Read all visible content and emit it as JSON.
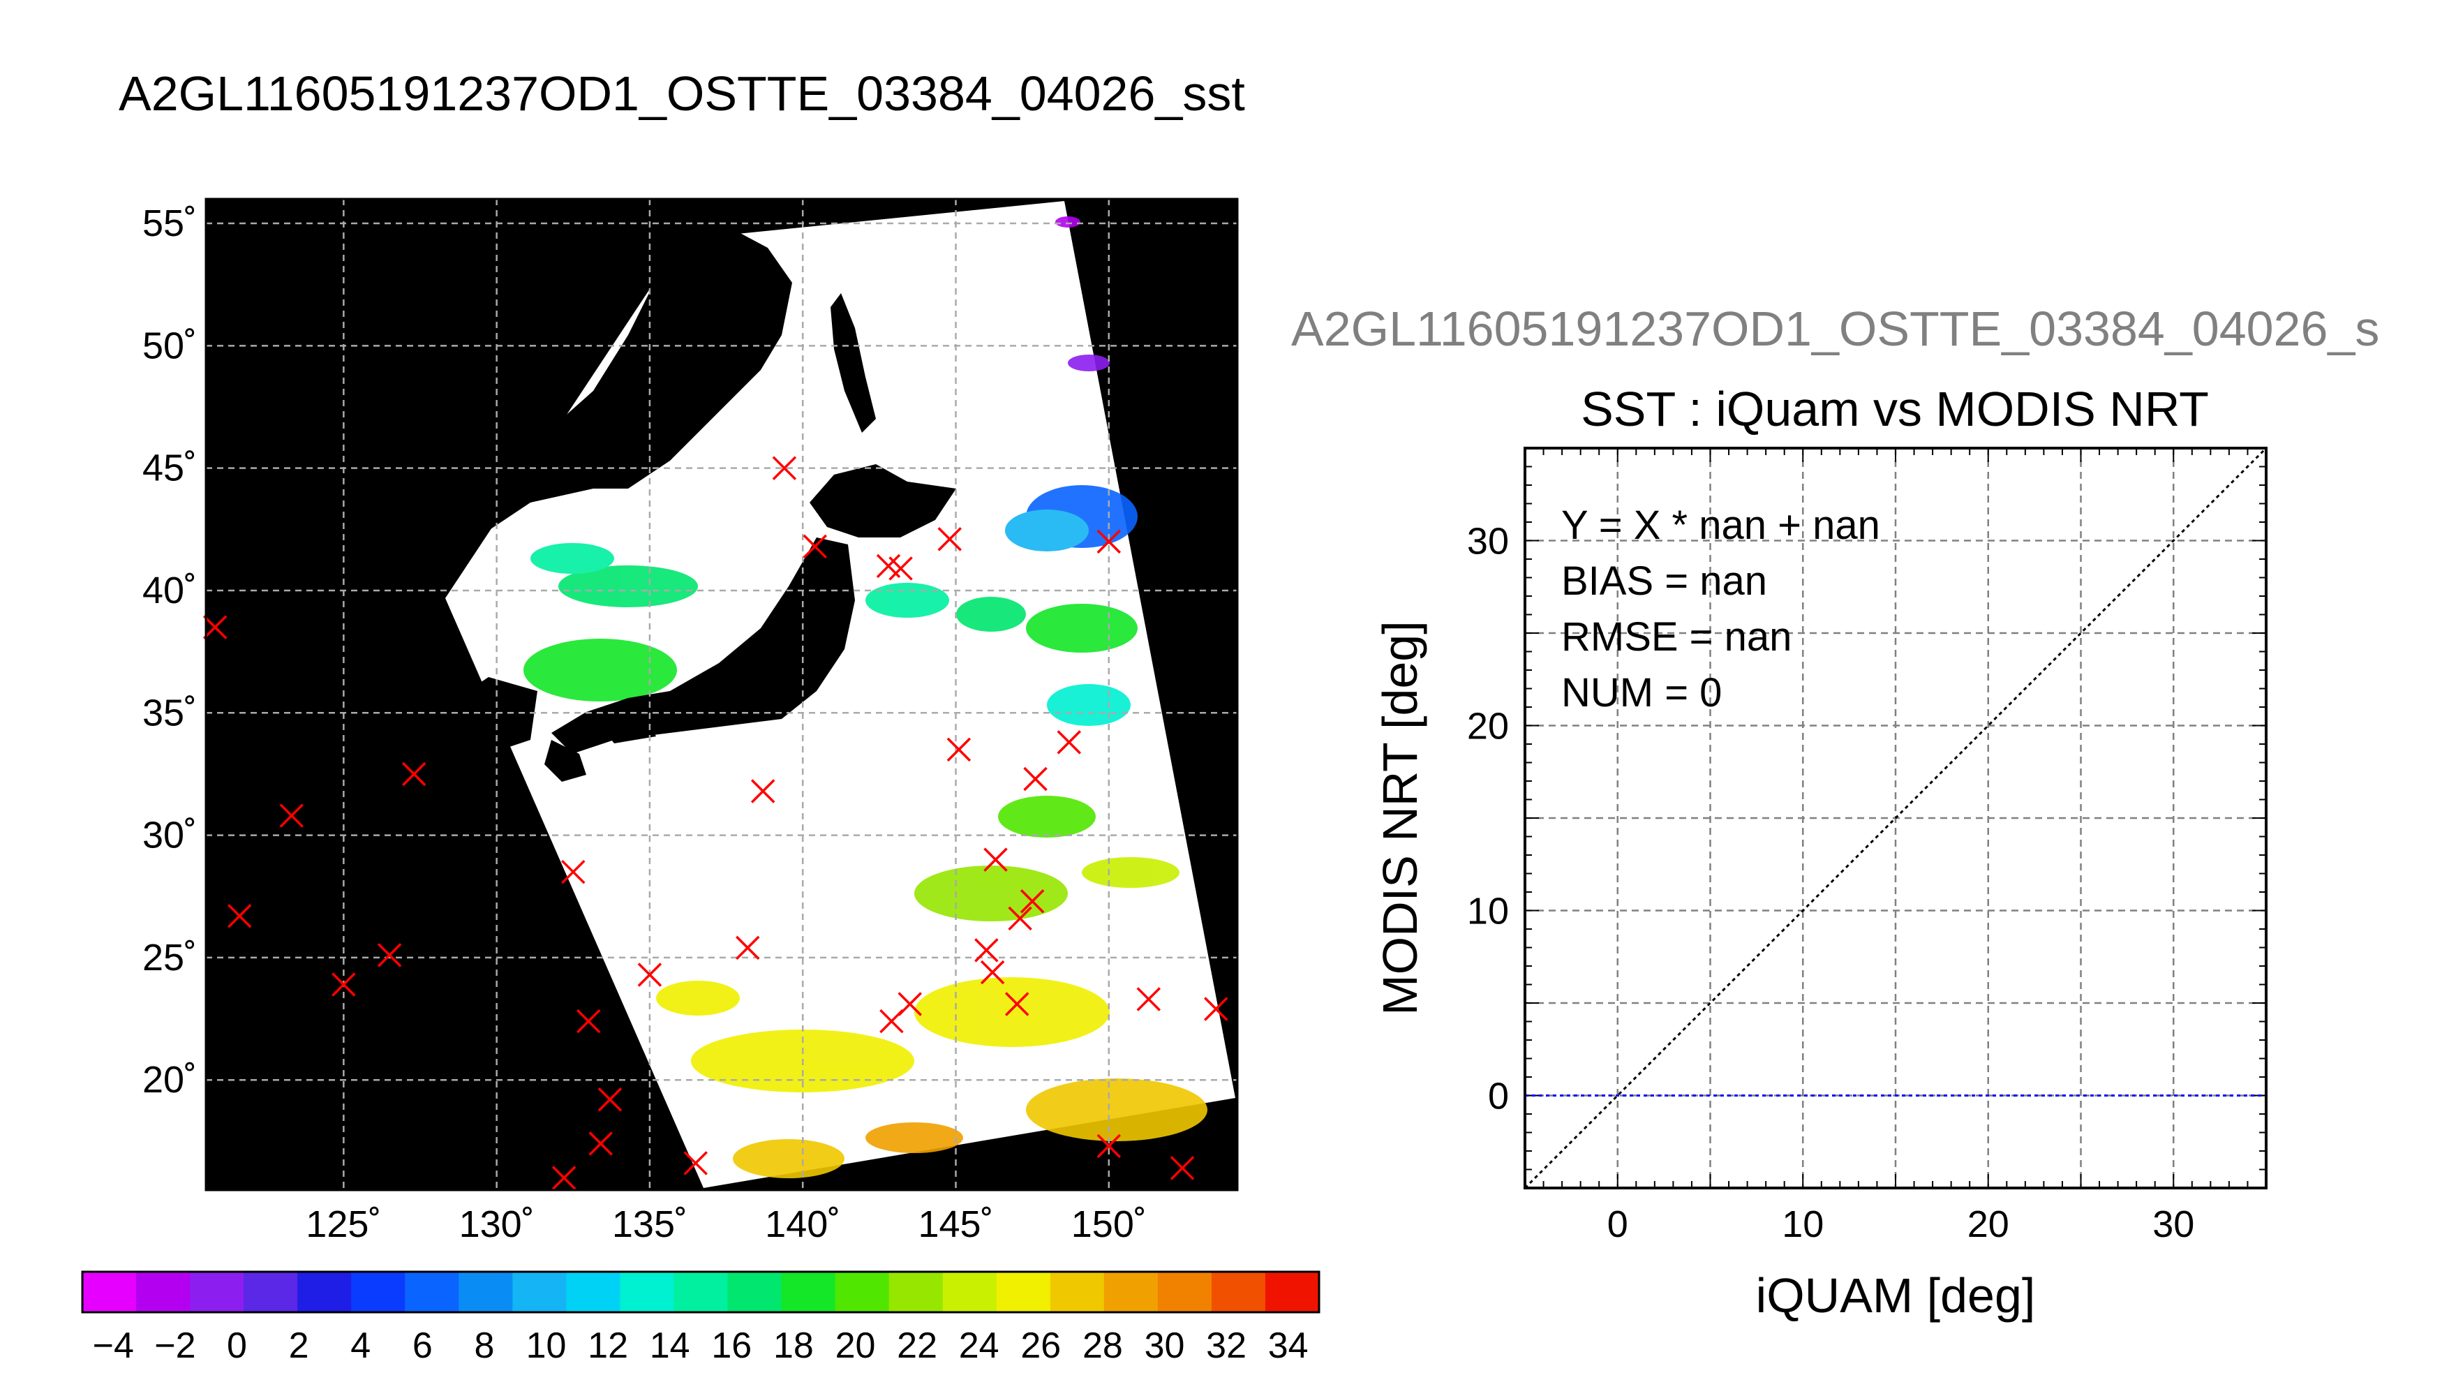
{
  "figure_title": "A2GL11605191237OD1_OSTTE_03384_04026_sst",
  "chart_data": [
    {
      "type": "heatmap",
      "title": "A2GL11605191237OD1_OSTTE_03384_04026_sst",
      "xlabel": "",
      "ylabel": "",
      "xlim": [
        120.5,
        154.2
      ],
      "ylim": [
        15.5,
        56.0
      ],
      "x_ticks": [
        125,
        130,
        135,
        140,
        145,
        150
      ],
      "y_ticks": [
        20,
        25,
        30,
        35,
        40,
        45,
        50,
        55
      ],
      "x_tick_labels": [
        "125˚",
        "130˚",
        "135˚",
        "140˚",
        "145˚",
        "150˚"
      ],
      "y_tick_labels": [
        "20˚",
        "25˚",
        "30˚",
        "35˚",
        "40˚",
        "45˚",
        "50˚",
        "55˚"
      ],
      "grid": true,
      "colorbar": {
        "min": -5,
        "max": 35,
        "step": 2,
        "tick_labels": [
          "−4",
          "−2",
          "0",
          "2",
          "4",
          "6",
          "8",
          "10",
          "12",
          "14",
          "16",
          "18",
          "20",
          "22",
          "24",
          "26",
          "28",
          "30",
          "32",
          "34"
        ],
        "colors": [
          "#e600ff",
          "#b400f0",
          "#8c1ef0",
          "#5a28e6",
          "#1e1ee6",
          "#0a3cff",
          "#0a64ff",
          "#0a8cf5",
          "#14b4f5",
          "#00d2f5",
          "#00f0d2",
          "#00f0a0",
          "#00e66e",
          "#14e628",
          "#50e600",
          "#96e600",
          "#c8f000",
          "#f0f000",
          "#f0c800",
          "#f0a000",
          "#f08200",
          "#f05000",
          "#f01400"
        ]
      },
      "markers": {
        "symbol": "x",
        "color": "#ff0000",
        "points": [
          [
            120.8,
            38.5
          ],
          [
            121.6,
            26.7
          ],
          [
            123.3,
            30.8
          ],
          [
            125.0,
            23.9
          ],
          [
            126.5,
            25.1
          ],
          [
            127.3,
            32.5
          ],
          [
            132.5,
            28.5
          ],
          [
            133.0,
            22.4
          ],
          [
            133.4,
            17.4
          ],
          [
            133.7,
            19.2
          ],
          [
            132.2,
            16.0
          ],
          [
            135.0,
            24.3
          ],
          [
            136.5,
            16.6
          ],
          [
            138.2,
            25.4
          ],
          [
            138.7,
            31.8
          ],
          [
            139.4,
            45.0
          ],
          [
            140.4,
            41.8
          ],
          [
            142.8,
            41.0
          ],
          [
            143.2,
            40.9
          ],
          [
            144.8,
            42.1
          ],
          [
            145.1,
            33.5
          ],
          [
            142.9,
            22.4
          ],
          [
            143.5,
            23.1
          ],
          [
            146.0,
            25.3
          ],
          [
            146.2,
            24.4
          ],
          [
            146.3,
            29.0
          ],
          [
            147.0,
            23.1
          ],
          [
            147.1,
            26.6
          ],
          [
            147.5,
            27.3
          ],
          [
            147.6,
            32.3
          ],
          [
            148.7,
            33.8
          ],
          [
            150.0,
            42.0
          ],
          [
            150.0,
            17.3
          ],
          [
            151.3,
            23.3
          ],
          [
            152.4,
            16.4
          ],
          [
            153.5,
            22.9
          ]
        ]
      }
    },
    {
      "type": "scatter",
      "title": "SST : iQuam vs MODIS NRT",
      "subtitle": "A2GL11605191237OD1_OSTTE_03384_04026_s",
      "xlabel": "iQUAM [deg]",
      "ylabel": "MODIS NRT [deg]",
      "xlim": [
        -5,
        35
      ],
      "ylim": [
        -5,
        35
      ],
      "x_ticks": [
        0,
        10,
        20,
        30
      ],
      "y_ticks": [
        0,
        10,
        20,
        30
      ],
      "grid": true,
      "grid_step": 5,
      "stats": [
        "Y = X * nan + nan",
        "BIAS = nan",
        "RMSE = nan",
        "NUM = 0"
      ],
      "series": [],
      "reference_line": {
        "x": [
          -5,
          35
        ],
        "y": [
          -5,
          35
        ],
        "style": "dotted",
        "color": "#000000"
      },
      "horizontal_line": {
        "y": 0,
        "style": "dotted",
        "color": "#0000ff"
      }
    }
  ]
}
